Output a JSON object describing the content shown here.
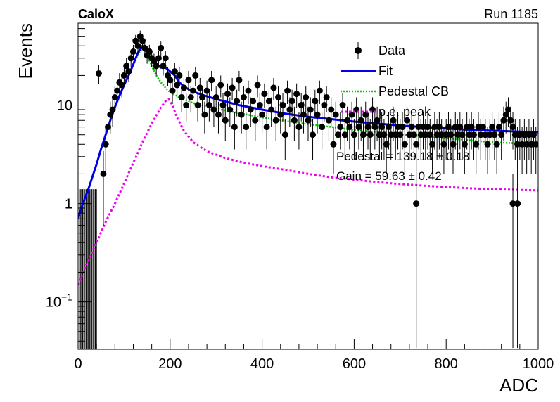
{
  "chart_data": {
    "type": "scatter",
    "title_left": "CaloX",
    "title_right": "Run 1185",
    "xlabel": "ADC",
    "ylabel": "Events",
    "xlim": [
      0,
      1000
    ],
    "ylim": [
      0.033,
      68
    ],
    "y_scale": "log",
    "x_ticks": [
      "0",
      "200",
      "400",
      "600",
      "800",
      "1000"
    ],
    "y_ticks": [
      {
        "value": 0.1,
        "base": "10",
        "exp": "−1"
      },
      {
        "value": 1,
        "base": "1",
        "exp": ""
      },
      {
        "value": 10,
        "base": "10",
        "exp": ""
      }
    ],
    "legend": {
      "placement": "top-right",
      "entries": [
        {
          "label": "Data",
          "style": "marker",
          "color": "#000000"
        },
        {
          "label": "Fit",
          "style": "solid",
          "color": "#0000ee"
        },
        {
          "label": "Pedestal CB",
          "style": "dotted",
          "color": "#00cc00"
        },
        {
          "label": "p.e. peak",
          "style": "dashed",
          "color": "#ee00ee"
        }
      ]
    },
    "annotations": {
      "pedestal": "Pedestal = 139.18 ± 0.18",
      "gain": "Gain = 59.63 ± 0.42"
    },
    "series": [
      {
        "name": "Data",
        "points": [
          [
            45,
            21
          ],
          [
            55,
            2
          ],
          [
            60,
            4
          ],
          [
            65,
            6
          ],
          [
            70,
            8
          ],
          [
            75,
            9
          ],
          [
            80,
            12
          ],
          [
            85,
            14
          ],
          [
            90,
            17
          ],
          [
            95,
            16
          ],
          [
            100,
            20
          ],
          [
            105,
            25
          ],
          [
            110,
            22
          ],
          [
            115,
            30
          ],
          [
            120,
            35
          ],
          [
            125,
            45
          ],
          [
            130,
            40
          ],
          [
            135,
            50
          ],
          [
            140,
            45
          ],
          [
            145,
            38
          ],
          [
            150,
            32
          ],
          [
            155,
            35
          ],
          [
            160,
            30
          ],
          [
            165,
            28
          ],
          [
            170,
            25
          ],
          [
            175,
            30
          ],
          [
            180,
            38
          ],
          [
            185,
            25
          ],
          [
            190,
            30
          ],
          [
            195,
            20
          ],
          [
            200,
            18
          ],
          [
            205,
            14
          ],
          [
            210,
            22
          ],
          [
            215,
            16
          ],
          [
            220,
            20
          ],
          [
            225,
            12
          ],
          [
            230,
            15
          ],
          [
            235,
            10
          ],
          [
            240,
            18
          ],
          [
            245,
            12
          ],
          [
            250,
            14
          ],
          [
            255,
            20
          ],
          [
            260,
            10
          ],
          [
            265,
            15
          ],
          [
            270,
            12
          ],
          [
            275,
            8
          ],
          [
            280,
            14
          ],
          [
            285,
            10
          ],
          [
            290,
            18
          ],
          [
            295,
            9
          ],
          [
            300,
            12
          ],
          [
            305,
            8
          ],
          [
            310,
            16
          ],
          [
            315,
            10
          ],
          [
            320,
            7
          ],
          [
            325,
            13
          ],
          [
            330,
            9
          ],
          [
            335,
            15
          ],
          [
            340,
            6
          ],
          [
            345,
            11
          ],
          [
            350,
            18
          ],
          [
            355,
            8
          ],
          [
            360,
            12
          ],
          [
            365,
            6
          ],
          [
            370,
            14
          ],
          [
            375,
            9
          ],
          [
            380,
            11
          ],
          [
            385,
            7
          ],
          [
            390,
            16
          ],
          [
            395,
            10
          ],
          [
            400,
            8
          ],
          [
            405,
            13
          ],
          [
            410,
            6
          ],
          [
            415,
            11
          ],
          [
            420,
            9
          ],
          [
            425,
            15
          ],
          [
            430,
            7
          ],
          [
            435,
            12
          ],
          [
            440,
            8
          ],
          [
            445,
            10
          ],
          [
            450,
            5
          ],
          [
            455,
            14
          ],
          [
            460,
            9
          ],
          [
            465,
            11
          ],
          [
            470,
            7
          ],
          [
            475,
            13
          ],
          [
            480,
            6
          ],
          [
            485,
            10
          ],
          [
            490,
            8
          ],
          [
            495,
            12
          ],
          [
            500,
            7
          ],
          [
            505,
            9
          ],
          [
            510,
            5
          ],
          [
            515,
            11
          ],
          [
            520,
            8
          ],
          [
            525,
            14
          ],
          [
            530,
            6
          ],
          [
            535,
            10
          ],
          [
            540,
            12
          ],
          [
            545,
            7
          ],
          [
            550,
            9
          ],
          [
            555,
            4
          ],
          [
            560,
            8
          ],
          [
            565,
            5
          ],
          [
            570,
            6
          ],
          [
            575,
            10
          ],
          [
            580,
            5
          ],
          [
            585,
            7
          ],
          [
            590,
            6
          ],
          [
            595,
            8
          ],
          [
            600,
            5
          ],
          [
            605,
            9
          ],
          [
            610,
            6
          ],
          [
            615,
            7
          ],
          [
            620,
            5
          ],
          [
            625,
            8
          ],
          [
            630,
            6
          ],
          [
            635,
            5
          ],
          [
            640,
            9
          ],
          [
            645,
            6
          ],
          [
            650,
            7
          ],
          [
            655,
            5
          ],
          [
            660,
            6
          ],
          [
            665,
            5
          ],
          [
            670,
            4
          ],
          [
            675,
            6
          ],
          [
            680,
            5
          ],
          [
            685,
            7
          ],
          [
            690,
            5
          ],
          [
            695,
            6
          ],
          [
            700,
            5
          ],
          [
            705,
            6
          ],
          [
            710,
            4
          ],
          [
            715,
            7
          ],
          [
            720,
            5
          ],
          [
            725,
            6
          ],
          [
            730,
            5
          ],
          [
            735,
            4
          ],
          [
            740,
            6
          ],
          [
            745,
            5
          ],
          [
            750,
            6
          ],
          [
            755,
            5
          ],
          [
            760,
            6
          ],
          [
            765,
            5
          ],
          [
            770,
            4
          ],
          [
            775,
            6
          ],
          [
            780,
            5
          ],
          [
            785,
            6
          ],
          [
            790,
            5
          ],
          [
            795,
            4
          ],
          [
            800,
            5
          ],
          [
            805,
            6
          ],
          [
            810,
            5
          ],
          [
            815,
            4
          ],
          [
            820,
            6
          ],
          [
            825,
            5
          ],
          [
            830,
            6
          ],
          [
            835,
            5
          ],
          [
            840,
            4
          ],
          [
            845,
            6
          ],
          [
            850,
            5
          ],
          [
            855,
            6
          ],
          [
            860,
            5
          ],
          [
            865,
            4
          ],
          [
            870,
            6
          ],
          [
            875,
            5
          ],
          [
            880,
            6
          ],
          [
            885,
            5
          ],
          [
            890,
            4
          ],
          [
            895,
            5
          ],
          [
            900,
            6
          ],
          [
            905,
            5
          ],
          [
            910,
            4
          ],
          [
            915,
            6
          ],
          [
            920,
            5
          ],
          [
            925,
            7
          ],
          [
            930,
            8
          ],
          [
            935,
            9
          ],
          [
            940,
            7
          ],
          [
            945,
            6
          ],
          [
            950,
            5
          ],
          [
            955,
            4
          ],
          [
            960,
            5
          ],
          [
            965,
            4
          ],
          [
            970,
            5
          ],
          [
            975,
            4
          ],
          [
            980,
            5
          ],
          [
            985,
            4
          ],
          [
            990,
            5
          ],
          [
            995,
            4
          ],
          [
            735,
            1
          ],
          [
            945,
            1
          ],
          [
            955,
            1
          ]
        ]
      },
      {
        "name": "Fit",
        "points": [
          [
            0,
            0.7
          ],
          [
            10,
            1
          ],
          [
            20,
            1.3
          ],
          [
            30,
            1.8
          ],
          [
            40,
            2.5
          ],
          [
            50,
            3.6
          ],
          [
            60,
            5
          ],
          [
            70,
            7
          ],
          [
            80,
            9.5
          ],
          [
            90,
            12.5
          ],
          [
            100,
            16
          ],
          [
            110,
            20
          ],
          [
            120,
            26
          ],
          [
            130,
            34
          ],
          [
            140,
            40
          ],
          [
            150,
            34
          ],
          [
            160,
            28
          ],
          [
            170,
            26
          ],
          [
            180,
            24
          ],
          [
            190,
            24
          ],
          [
            200,
            22
          ],
          [
            210,
            20
          ],
          [
            220,
            17
          ],
          [
            230,
            15.5
          ],
          [
            240,
            14.5
          ],
          [
            250,
            13.8
          ],
          [
            260,
            13.2
          ],
          [
            280,
            12.3
          ],
          [
            300,
            11.5
          ],
          [
            350,
            10
          ],
          [
            400,
            9
          ],
          [
            450,
            8.2
          ],
          [
            500,
            7.6
          ],
          [
            550,
            7.2
          ],
          [
            600,
            6.8
          ],
          [
            650,
            6.5
          ],
          [
            700,
            6.2
          ],
          [
            750,
            6
          ],
          [
            800,
            5.8
          ],
          [
            850,
            5.6
          ],
          [
            900,
            5.5
          ],
          [
            950,
            5.4
          ],
          [
            1000,
            5.3
          ]
        ]
      },
      {
        "name": "Pedestal CB",
        "points": [
          [
            0,
            0.7
          ],
          [
            10,
            1
          ],
          [
            20,
            1.3
          ],
          [
            30,
            1.8
          ],
          [
            40,
            2.5
          ],
          [
            50,
            3.6
          ],
          [
            60,
            5
          ],
          [
            70,
            7
          ],
          [
            80,
            9.5
          ],
          [
            90,
            12.5
          ],
          [
            100,
            16
          ],
          [
            110,
            20
          ],
          [
            120,
            26
          ],
          [
            130,
            33
          ],
          [
            140,
            38
          ],
          [
            150,
            32
          ],
          [
            160,
            25
          ],
          [
            170,
            20
          ],
          [
            180,
            17
          ],
          [
            190,
            15
          ],
          [
            200,
            13.5
          ],
          [
            220,
            12
          ],
          [
            250,
            10.5
          ],
          [
            300,
            9.2
          ],
          [
            350,
            8.3
          ],
          [
            400,
            7.5
          ],
          [
            450,
            6.9
          ],
          [
            500,
            6.4
          ],
          [
            550,
            6
          ],
          [
            600,
            5.6
          ],
          [
            650,
            5.3
          ],
          [
            700,
            5
          ],
          [
            750,
            4.8
          ],
          [
            800,
            4.6
          ],
          [
            850,
            4.4
          ],
          [
            900,
            4.2
          ],
          [
            950,
            4.1
          ],
          [
            1000,
            4
          ]
        ]
      },
      {
        "name": "p.e. peak",
        "points": [
          [
            0,
            0.15
          ],
          [
            20,
            0.25
          ],
          [
            40,
            0.4
          ],
          [
            60,
            0.65
          ],
          [
            80,
            1
          ],
          [
            100,
            1.6
          ],
          [
            120,
            2.6
          ],
          [
            140,
            4.2
          ],
          [
            160,
            6.5
          ],
          [
            180,
            9.5
          ],
          [
            190,
            11
          ],
          [
            197,
            11.5
          ],
          [
            205,
            10
          ],
          [
            215,
            7.5
          ],
          [
            230,
            5.5
          ],
          [
            250,
            4.2
          ],
          [
            280,
            3.4
          ],
          [
            320,
            2.9
          ],
          [
            360,
            2.6
          ],
          [
            400,
            2.4
          ],
          [
            450,
            2.2
          ],
          [
            500,
            2
          ],
          [
            550,
            1.85
          ],
          [
            600,
            1.75
          ],
          [
            650,
            1.65
          ],
          [
            700,
            1.58
          ],
          [
            750,
            1.52
          ],
          [
            800,
            1.47
          ],
          [
            850,
            1.43
          ],
          [
            900,
            1.4
          ],
          [
            950,
            1.38
          ],
          [
            1000,
            1.36
          ]
        ]
      }
    ]
  }
}
